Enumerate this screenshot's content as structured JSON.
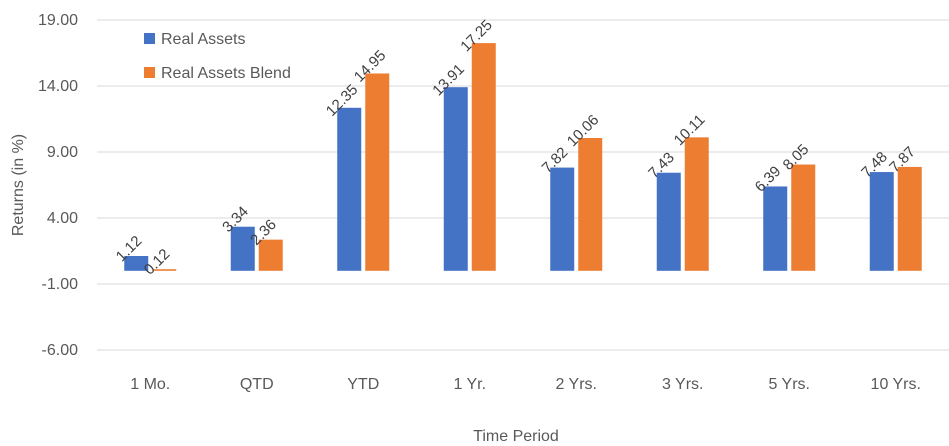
{
  "chart_data": {
    "type": "bar",
    "title": "",
    "xlabel": "Time Period",
    "ylabel": "Returns (in %)",
    "ylim": [
      -6,
      19
    ],
    "yticks": [
      "19.00",
      "14.00",
      "9.00",
      "4.00",
      "-1.00",
      "-6.00"
    ],
    "grid": true,
    "legend_position": "top-left",
    "categories": [
      "1 Mo.",
      "QTD",
      "YTD",
      "1 Yr.",
      "2 Yrs.",
      "3 Yrs.",
      "5 Yrs.",
      "10 Yrs."
    ],
    "series": [
      {
        "name": "Real Assets",
        "color": "#4472c4",
        "values": [
          1.12,
          3.34,
          12.35,
          13.91,
          7.82,
          7.43,
          6.39,
          7.48
        ],
        "labels": [
          "1.12",
          "3.34",
          "12.35",
          "13.91",
          "7.82",
          "7.43",
          "6.39",
          "7.48"
        ]
      },
      {
        "name": "Real Assets Blend",
        "color": "#ed7d31",
        "values": [
          0.12,
          2.36,
          14.95,
          17.25,
          10.06,
          10.11,
          8.05,
          7.87
        ],
        "labels": [
          "0.12",
          "2.36",
          "14.95",
          "17.25",
          "10.06",
          "10.11",
          "8.05",
          "7.87"
        ]
      }
    ]
  }
}
